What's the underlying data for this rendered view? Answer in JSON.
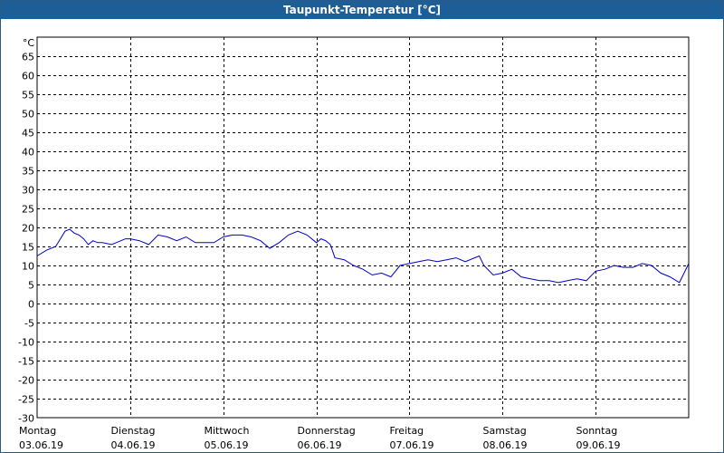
{
  "window": {
    "title": "Taupunkt-Temperatur [°C]"
  },
  "chart_data": {
    "type": "line",
    "title": "Taupunkt-Temperatur [°C]",
    "ylabel": "°C",
    "ylim": [
      -30,
      70
    ],
    "yticks": [
      65,
      60,
      55,
      50,
      45,
      40,
      35,
      30,
      25,
      20,
      15,
      10,
      5,
      0,
      -5,
      -10,
      -15,
      -20,
      -25,
      -30
    ],
    "xlim": [
      0,
      7
    ],
    "grid": true,
    "days": [
      {
        "weekday": "Montag",
        "date": "03.06.19"
      },
      {
        "weekday": "Dienstag",
        "date": "04.06.19"
      },
      {
        "weekday": "Mittwoch",
        "date": "05.06.19"
      },
      {
        "weekday": "Donnerstag",
        "date": "06.06.19"
      },
      {
        "weekday": "Freitag",
        "date": "07.06.19"
      },
      {
        "weekday": "Samstag",
        "date": "08.06.19"
      },
      {
        "weekday": "Sonntag",
        "date": "09.06.19"
      }
    ],
    "series": [
      {
        "color": "#0000cc",
        "x": [
          0,
          0.1,
          0.2,
          0.3,
          0.35,
          0.4,
          0.45,
          0.5,
          0.55,
          0.6,
          0.65,
          0.7,
          0.8,
          0.9,
          0.95,
          1.0,
          1.1,
          1.2,
          1.3,
          1.4,
          1.5,
          1.6,
          1.7,
          1.8,
          1.9,
          2.0,
          2.1,
          2.2,
          2.3,
          2.4,
          2.5,
          2.6,
          2.7,
          2.8,
          2.9,
          3.0,
          3.05,
          3.1,
          3.15,
          3.2,
          3.3,
          3.4,
          3.5,
          3.6,
          3.7,
          3.8,
          3.9,
          4.0,
          4.1,
          4.2,
          4.3,
          4.4,
          4.5,
          4.6,
          4.7,
          4.75,
          4.8,
          4.9,
          5.0,
          5.1,
          5.2,
          5.3,
          5.4,
          5.5,
          5.6,
          5.7,
          5.8,
          5.9,
          6.0,
          6.1,
          6.2,
          6.3,
          6.4,
          6.5,
          6.6,
          6.7,
          6.8,
          6.9,
          6.95,
          7.0
        ],
        "values": [
          12.5,
          14,
          15,
          19,
          19.5,
          18.5,
          18,
          17,
          15.5,
          16.5,
          16,
          16,
          15.5,
          16.5,
          17,
          17,
          16.5,
          15.5,
          18,
          17.5,
          16.5,
          17.5,
          16,
          16,
          16,
          17.5,
          18,
          18,
          17.5,
          16.5,
          14.5,
          16,
          18,
          19,
          18,
          16,
          17,
          16.5,
          15.5,
          12,
          11.5,
          10,
          9,
          7.5,
          8,
          7,
          10,
          10.5,
          11,
          11.5,
          11,
          11.5,
          12,
          11,
          12,
          12.5,
          10,
          7.5,
          8,
          9,
          7,
          6.5,
          6,
          6,
          5.5,
          6,
          6.5,
          6,
          8.5,
          9,
          10,
          9.5,
          9.5,
          10.5,
          10,
          8,
          7,
          5.5,
          8,
          10.5
        ]
      }
    ]
  }
}
